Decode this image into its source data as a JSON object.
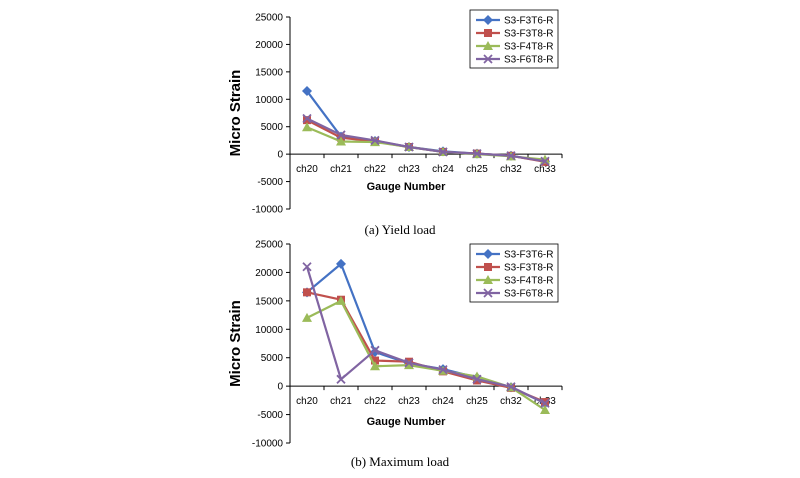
{
  "chart_data": [
    {
      "type": "line",
      "caption": "(a)  Yield  load",
      "xlabel": "Gauge Number",
      "ylabel": "Micro Strain",
      "categories": [
        "ch20",
        "ch21",
        "ch22",
        "ch23",
        "ch24",
        "ch25",
        "ch32",
        "ch33"
      ],
      "ylim": [
        -10000,
        25000
      ],
      "yticks": [
        -10000,
        -5000,
        0,
        5000,
        10000,
        15000,
        20000,
        25000
      ],
      "grid": false,
      "legend": "top-right",
      "series": [
        {
          "name": "S3-F3T6-R",
          "color": "#4472C4",
          "marker": "diamond",
          "values": [
            11500,
            3200,
            2400,
            1300,
            500,
            100,
            -300,
            -1300
          ]
        },
        {
          "name": "S3-F3T8-R",
          "color": "#C0504D",
          "marker": "square",
          "values": [
            6200,
            3000,
            2300,
            1300,
            400,
            100,
            -300,
            -1400
          ]
        },
        {
          "name": "S3-F4T8-R",
          "color": "#9BBB59",
          "marker": "triangle",
          "values": [
            4900,
            2300,
            2200,
            1300,
            400,
            0,
            -400,
            -1000
          ]
        },
        {
          "name": "S3-F6T8-R",
          "color": "#8064A2",
          "marker": "x",
          "values": [
            6500,
            3500,
            2500,
            1300,
            400,
            100,
            -300,
            -1300
          ]
        }
      ]
    },
    {
      "type": "line",
      "caption": "(b)  Maximum  load",
      "xlabel": "Gauge Number",
      "ylabel": "Micro Strain",
      "categories": [
        "ch20",
        "ch21",
        "ch22",
        "ch23",
        "ch24",
        "ch25",
        "ch32",
        "ch33"
      ],
      "ylim": [
        -10000,
        25000
      ],
      "yticks": [
        -10000,
        -5000,
        0,
        5000,
        10000,
        15000,
        20000,
        25000
      ],
      "grid": false,
      "legend": "top-right",
      "series": [
        {
          "name": "S3-F3T6-R",
          "color": "#4472C4",
          "marker": "diamond",
          "values": [
            16500,
            21500,
            6000,
            4000,
            3000,
            1500,
            -200,
            -3000
          ]
        },
        {
          "name": "S3-F3T8-R",
          "color": "#C0504D",
          "marker": "square",
          "values": [
            16500,
            15200,
            4500,
            4300,
            2600,
            1000,
            -300,
            -2800
          ]
        },
        {
          "name": "S3-F4T8-R",
          "color": "#9BBB59",
          "marker": "triangle",
          "values": [
            12000,
            15000,
            3500,
            3700,
            2700,
            1700,
            -200,
            -4200
          ]
        },
        {
          "name": "S3-F6T8-R",
          "color": "#8064A2",
          "marker": "x",
          "values": [
            21000,
            1200,
            6300,
            4100,
            2900,
            1200,
            -100,
            -3000
          ]
        }
      ]
    }
  ]
}
